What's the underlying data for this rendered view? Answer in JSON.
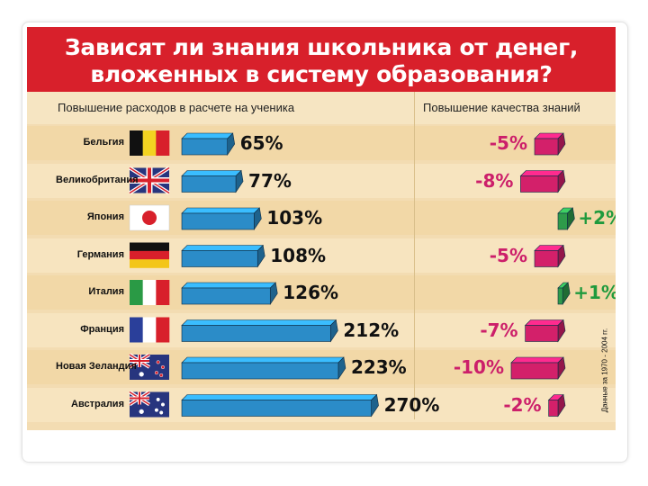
{
  "title_line1": "Зависят ли знания школьника от денег,",
  "title_line2": "вложенных в систему образования?",
  "header_left": "Повышение расходов в расчете на ученика",
  "header_right": "Повышение качества знаний",
  "note": "Данные за 1970 - 2004 гг.",
  "colors": {
    "title_band": "#d8202b",
    "spend_bar": "#2b8cc8",
    "negative_bar": "#d3206a",
    "positive_bar": "#2e9a4a",
    "negative_text": "#cc1f6a",
    "positive_text": "#1f9a3d"
  },
  "chart_data": {
    "type": "bar",
    "title": "Зависят ли знания школьника от денег, вложенных в систему образования?",
    "categories": [
      "Бельгия",
      "Великобритания",
      "Япония",
      "Германия",
      "Италия",
      "Франция",
      "Новая Зеландия",
      "Австралия"
    ],
    "series": [
      {
        "name": "Повышение расходов в расчете на ученика",
        "values": [
          65,
          77,
          103,
          108,
          126,
          212,
          223,
          270
        ],
        "labels": [
          "65%",
          "77%",
          "103%",
          "108%",
          "126%",
          "212%",
          "223%",
          "270%"
        ]
      },
      {
        "name": "Повышение качества знаний",
        "values": [
          -5,
          -8,
          2,
          -5,
          1,
          -7,
          -10,
          -2
        ],
        "labels": [
          "-5%",
          "-8%",
          "+2%",
          "-5%",
          "+1%",
          "-7%",
          "-10%",
          "-2%"
        ]
      }
    ],
    "flags": [
      "belgium-flag",
      "uk-flag",
      "japan-flag",
      "germany-flag",
      "italy-flag",
      "france-flag",
      "new-zealand-flag",
      "australia-flag"
    ]
  }
}
